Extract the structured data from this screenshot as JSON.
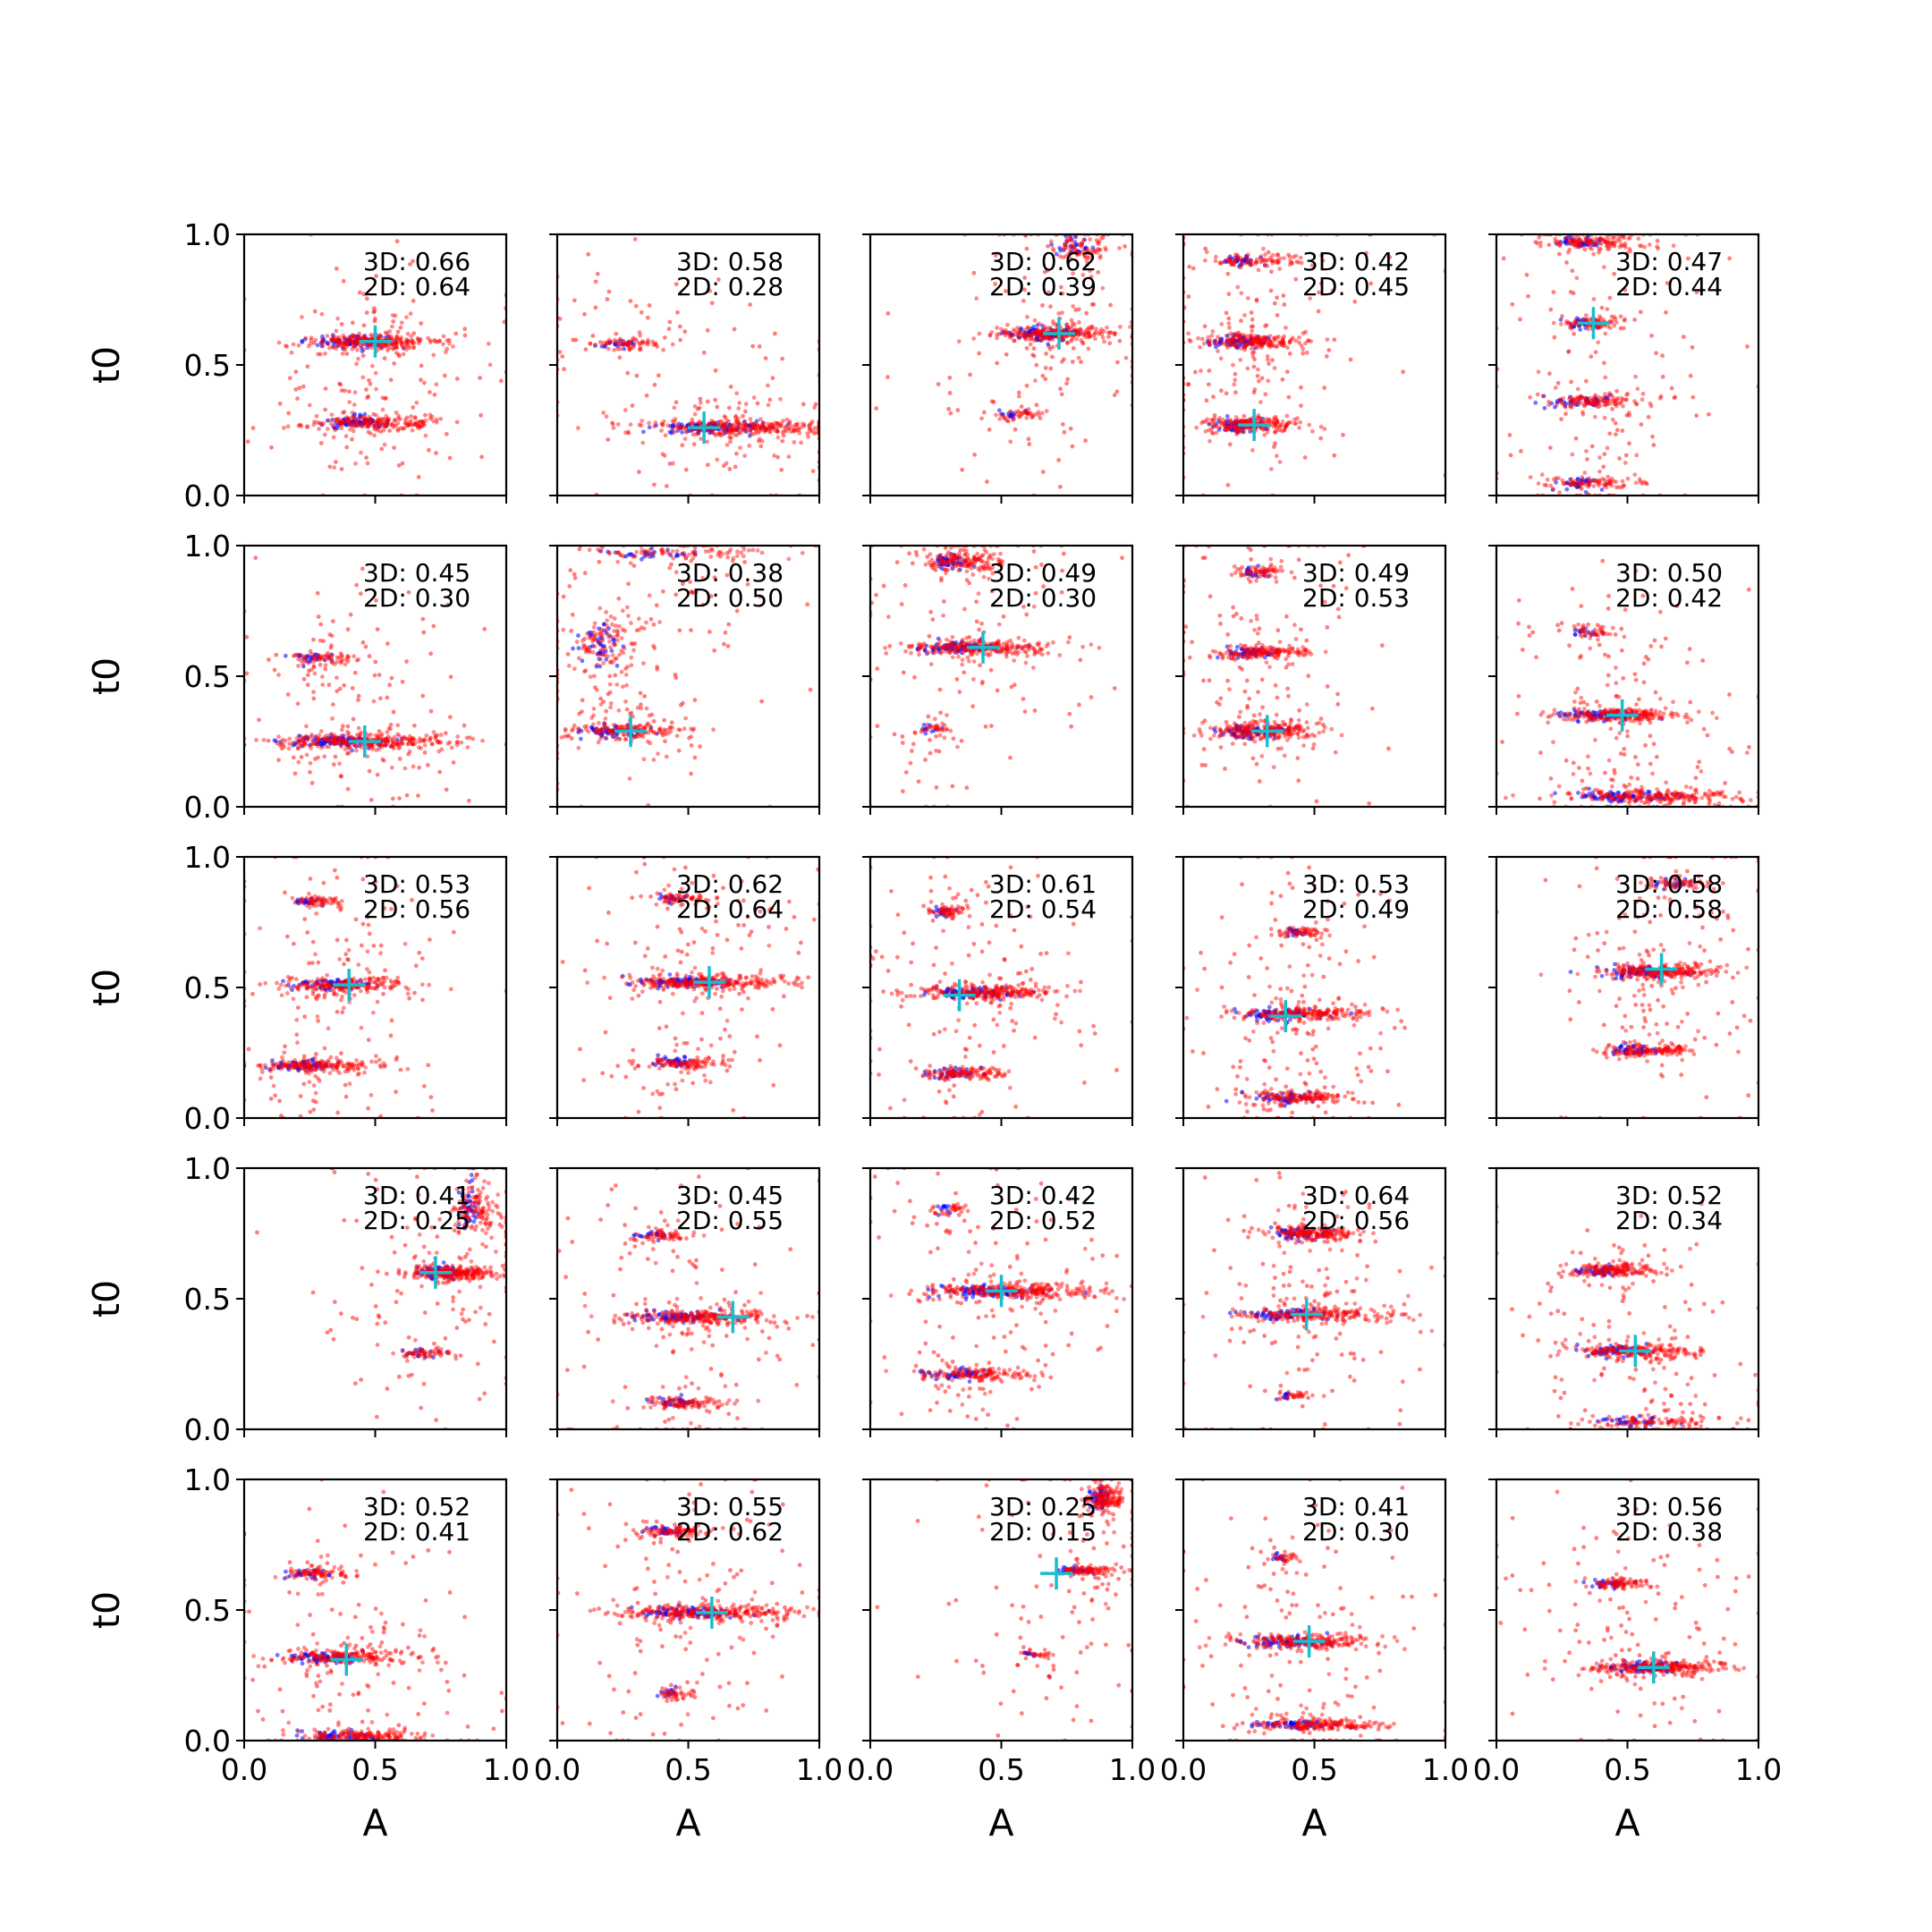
{
  "chart_data": {
    "type": "scatter",
    "title": "",
    "layout": {
      "rows": 5,
      "cols": 5
    },
    "xlabel": "A",
    "ylabel": "t0",
    "xlim": [
      0,
      1
    ],
    "ylim": [
      0,
      1
    ],
    "xticks": [
      "0.0",
      "0.5",
      "1.0"
    ],
    "yticks": [
      "0.0",
      "0.5",
      "1.0"
    ],
    "grid": false,
    "colors": {
      "samples_red": "#ff0000",
      "samples_blue": "#0000ff",
      "truth_marker": "#17becf"
    },
    "panels": [
      {
        "id": 1,
        "score_3d": "3D: 0.66",
        "score_2d": "2D: 0.64",
        "truth": [
          0.5,
          0.59
        ],
        "clusters": [
          {
            "x": 0.5,
            "y": 0.59,
            "w": 0.32,
            "h": 0.025,
            "n": 260
          },
          {
            "x": 0.5,
            "y": 0.28,
            "w": 0.3,
            "h": 0.025,
            "n": 200
          }
        ]
      },
      {
        "id": 2,
        "score_3d": "3D: 0.58",
        "score_2d": "2D: 0.28",
        "truth": [
          0.56,
          0.26
        ],
        "clusters": [
          {
            "x": 0.27,
            "y": 0.58,
            "w": 0.14,
            "h": 0.018,
            "n": 60
          },
          {
            "x": 0.7,
            "y": 0.26,
            "w": 0.45,
            "h": 0.025,
            "n": 320
          }
        ]
      },
      {
        "id": 3,
        "score_3d": "3D: 0.62",
        "score_2d": "2D: 0.39",
        "truth": [
          0.72,
          0.62
        ],
        "clusters": [
          {
            "x": 0.72,
            "y": 0.62,
            "w": 0.25,
            "h": 0.025,
            "n": 260
          },
          {
            "x": 0.57,
            "y": 0.31,
            "w": 0.12,
            "h": 0.018,
            "n": 40
          },
          {
            "x": 0.8,
            "y": 0.95,
            "w": 0.12,
            "h": 0.04,
            "n": 80
          }
        ]
      },
      {
        "id": 4,
        "score_3d": "3D: 0.42",
        "score_2d": "2D: 0.45",
        "truth": [
          0.27,
          0.27
        ],
        "clusters": [
          {
            "x": 0.27,
            "y": 0.27,
            "w": 0.22,
            "h": 0.025,
            "n": 200
          },
          {
            "x": 0.27,
            "y": 0.59,
            "w": 0.22,
            "h": 0.025,
            "n": 200
          },
          {
            "x": 0.27,
            "y": 0.9,
            "w": 0.18,
            "h": 0.022,
            "n": 90
          }
        ]
      },
      {
        "id": 5,
        "score_3d": "3D: 0.47",
        "score_2d": "2D: 0.44",
        "truth": [
          0.37,
          0.66
        ],
        "clusters": [
          {
            "x": 0.37,
            "y": 0.66,
            "w": 0.14,
            "h": 0.022,
            "n": 80
          },
          {
            "x": 0.37,
            "y": 0.36,
            "w": 0.24,
            "h": 0.022,
            "n": 120
          },
          {
            "x": 0.37,
            "y": 0.05,
            "w": 0.2,
            "h": 0.022,
            "n": 100
          },
          {
            "x": 0.37,
            "y": 0.97,
            "w": 0.22,
            "h": 0.022,
            "n": 120
          }
        ]
      },
      {
        "id": 6,
        "score_3d": "3D: 0.45",
        "score_2d": "2D: 0.30",
        "truth": [
          0.46,
          0.25
        ],
        "clusters": [
          {
            "x": 0.46,
            "y": 0.25,
            "w": 0.4,
            "h": 0.022,
            "n": 300
          },
          {
            "x": 0.3,
            "y": 0.57,
            "w": 0.15,
            "h": 0.018,
            "n": 70
          }
        ]
      },
      {
        "id": 7,
        "score_3d": "3D: 0.38",
        "score_2d": "2D: 0.50",
        "truth": [
          0.28,
          0.29
        ],
        "clusters": [
          {
            "x": 0.28,
            "y": 0.29,
            "w": 0.25,
            "h": 0.025,
            "n": 160
          },
          {
            "x": 0.2,
            "y": 0.63,
            "w": 0.15,
            "h": 0.1,
            "n": 120
          },
          {
            "x": 0.5,
            "y": 0.97,
            "w": 0.4,
            "h": 0.02,
            "n": 80
          }
        ]
      },
      {
        "id": 8,
        "score_3d": "3D: 0.49",
        "score_2d": "2D: 0.30",
        "truth": [
          0.43,
          0.61
        ],
        "clusters": [
          {
            "x": 0.43,
            "y": 0.61,
            "w": 0.32,
            "h": 0.022,
            "n": 240
          },
          {
            "x": 0.35,
            "y": 0.94,
            "w": 0.15,
            "h": 0.03,
            "n": 150
          },
          {
            "x": 0.25,
            "y": 0.3,
            "w": 0.08,
            "h": 0.018,
            "n": 30
          }
        ]
      },
      {
        "id": 9,
        "score_3d": "3D: 0.49",
        "score_2d": "2D: 0.53",
        "truth": [
          0.32,
          0.29
        ],
        "clusters": [
          {
            "x": 0.32,
            "y": 0.29,
            "w": 0.25,
            "h": 0.025,
            "n": 220
          },
          {
            "x": 0.3,
            "y": 0.59,
            "w": 0.2,
            "h": 0.022,
            "n": 160
          },
          {
            "x": 0.3,
            "y": 0.9,
            "w": 0.12,
            "h": 0.018,
            "n": 60
          }
        ]
      },
      {
        "id": 10,
        "score_3d": "3D: 0.50",
        "score_2d": "2D: 0.42",
        "truth": [
          0.48,
          0.35
        ],
        "clusters": [
          {
            "x": 0.48,
            "y": 0.35,
            "w": 0.3,
            "h": 0.022,
            "n": 220
          },
          {
            "x": 0.6,
            "y": 0.04,
            "w": 0.4,
            "h": 0.022,
            "n": 220
          },
          {
            "x": 0.37,
            "y": 0.67,
            "w": 0.1,
            "h": 0.018,
            "n": 40
          }
        ]
      },
      {
        "id": 11,
        "score_3d": "3D: 0.53",
        "score_2d": "2D: 0.56",
        "truth": [
          0.4,
          0.51
        ],
        "clusters": [
          {
            "x": 0.4,
            "y": 0.51,
            "w": 0.3,
            "h": 0.022,
            "n": 200
          },
          {
            "x": 0.28,
            "y": 0.2,
            "w": 0.25,
            "h": 0.022,
            "n": 180
          },
          {
            "x": 0.28,
            "y": 0.83,
            "w": 0.12,
            "h": 0.018,
            "n": 60
          }
        ]
      },
      {
        "id": 12,
        "score_3d": "3D: 0.62",
        "score_2d": "2D: 0.64",
        "truth": [
          0.58,
          0.52
        ],
        "clusters": [
          {
            "x": 0.58,
            "y": 0.52,
            "w": 0.35,
            "h": 0.022,
            "n": 260
          },
          {
            "x": 0.48,
            "y": 0.21,
            "w": 0.18,
            "h": 0.022,
            "n": 100
          },
          {
            "x": 0.48,
            "y": 0.84,
            "w": 0.14,
            "h": 0.018,
            "n": 60
          }
        ]
      },
      {
        "id": 13,
        "score_3d": "3D: 0.61",
        "score_2d": "2D: 0.54",
        "truth": [
          0.34,
          0.47
        ],
        "clusters": [
          {
            "x": 0.45,
            "y": 0.48,
            "w": 0.3,
            "h": 0.022,
            "n": 240
          },
          {
            "x": 0.35,
            "y": 0.17,
            "w": 0.2,
            "h": 0.022,
            "n": 120
          },
          {
            "x": 0.3,
            "y": 0.79,
            "w": 0.1,
            "h": 0.018,
            "n": 60
          }
        ]
      },
      {
        "id": 14,
        "score_3d": "3D: 0.53",
        "score_2d": "2D: 0.49",
        "truth": [
          0.39,
          0.39
        ],
        "clusters": [
          {
            "x": 0.45,
            "y": 0.4,
            "w": 0.3,
            "h": 0.022,
            "n": 220
          },
          {
            "x": 0.45,
            "y": 0.08,
            "w": 0.25,
            "h": 0.02,
            "n": 150
          },
          {
            "x": 0.45,
            "y": 0.71,
            "w": 0.12,
            "h": 0.018,
            "n": 60
          }
        ]
      },
      {
        "id": 15,
        "score_3d": "3D: 0.58",
        "score_2d": "2D: 0.58",
        "truth": [
          0.63,
          0.57
        ],
        "clusters": [
          {
            "x": 0.63,
            "y": 0.56,
            "w": 0.28,
            "h": 0.022,
            "n": 240
          },
          {
            "x": 0.58,
            "y": 0.26,
            "w": 0.2,
            "h": 0.02,
            "n": 140
          },
          {
            "x": 0.7,
            "y": 0.9,
            "w": 0.15,
            "h": 0.02,
            "n": 60
          }
        ]
      },
      {
        "id": 16,
        "score_3d": "3D: 0.41",
        "score_2d": "2D: 0.25",
        "truth": [
          0.73,
          0.6
        ],
        "clusters": [
          {
            "x": 0.8,
            "y": 0.6,
            "w": 0.2,
            "h": 0.022,
            "n": 240
          },
          {
            "x": 0.7,
            "y": 0.29,
            "w": 0.14,
            "h": 0.015,
            "n": 50
          },
          {
            "x": 0.88,
            "y": 0.85,
            "w": 0.1,
            "h": 0.08,
            "n": 120
          }
        ]
      },
      {
        "id": 17,
        "score_3d": "3D: 0.45",
        "score_2d": "2D: 0.55",
        "truth": [
          0.67,
          0.43
        ],
        "clusters": [
          {
            "x": 0.55,
            "y": 0.43,
            "w": 0.35,
            "h": 0.022,
            "n": 240
          },
          {
            "x": 0.4,
            "y": 0.74,
            "w": 0.14,
            "h": 0.018,
            "n": 60
          },
          {
            "x": 0.5,
            "y": 0.1,
            "w": 0.2,
            "h": 0.02,
            "n": 100
          }
        ]
      },
      {
        "id": 18,
        "score_3d": "3D: 0.42",
        "score_2d": "2D: 0.52",
        "truth": [
          0.5,
          0.53
        ],
        "clusters": [
          {
            "x": 0.55,
            "y": 0.53,
            "w": 0.38,
            "h": 0.022,
            "n": 280
          },
          {
            "x": 0.4,
            "y": 0.21,
            "w": 0.25,
            "h": 0.02,
            "n": 140
          },
          {
            "x": 0.3,
            "y": 0.84,
            "w": 0.1,
            "h": 0.018,
            "n": 30
          }
        ]
      },
      {
        "id": 19,
        "score_3d": "3D: 0.64",
        "score_2d": "2D: 0.56",
        "truth": [
          0.47,
          0.44
        ],
        "clusters": [
          {
            "x": 0.5,
            "y": 0.44,
            "w": 0.35,
            "h": 0.022,
            "n": 220
          },
          {
            "x": 0.5,
            "y": 0.75,
            "w": 0.22,
            "h": 0.02,
            "n": 180
          },
          {
            "x": 0.42,
            "y": 0.13,
            "w": 0.08,
            "h": 0.015,
            "n": 30
          }
        ]
      },
      {
        "id": 20,
        "score_3d": "3D: 0.52",
        "score_2d": "2D: 0.34",
        "truth": [
          0.53,
          0.3
        ],
        "clusters": [
          {
            "x": 0.53,
            "y": 0.3,
            "w": 0.3,
            "h": 0.022,
            "n": 200
          },
          {
            "x": 0.45,
            "y": 0.61,
            "w": 0.2,
            "h": 0.02,
            "n": 160
          },
          {
            "x": 0.6,
            "y": 0.03,
            "w": 0.3,
            "h": 0.02,
            "n": 100
          }
        ]
      },
      {
        "id": 21,
        "score_3d": "3D: 0.52",
        "score_2d": "2D: 0.41",
        "truth": [
          0.39,
          0.31
        ],
        "clusters": [
          {
            "x": 0.39,
            "y": 0.32,
            "w": 0.3,
            "h": 0.022,
            "n": 200
          },
          {
            "x": 0.28,
            "y": 0.64,
            "w": 0.14,
            "h": 0.018,
            "n": 80
          },
          {
            "x": 0.45,
            "y": 0.02,
            "w": 0.3,
            "h": 0.018,
            "n": 160
          }
        ]
      },
      {
        "id": 22,
        "score_3d": "3D: 0.55",
        "score_2d": "2D: 0.62",
        "truth": [
          0.59,
          0.49
        ],
        "clusters": [
          {
            "x": 0.59,
            "y": 0.49,
            "w": 0.38,
            "h": 0.022,
            "n": 280
          },
          {
            "x": 0.45,
            "y": 0.8,
            "w": 0.15,
            "h": 0.018,
            "n": 90
          },
          {
            "x": 0.45,
            "y": 0.18,
            "w": 0.08,
            "h": 0.018,
            "n": 40
          }
        ]
      },
      {
        "id": 23,
        "score_3d": "3D: 0.25",
        "score_2d": "2D: 0.15",
        "truth": [
          0.71,
          0.64
        ],
        "clusters": [
          {
            "x": 0.82,
            "y": 0.65,
            "w": 0.14,
            "h": 0.015,
            "n": 90
          },
          {
            "x": 0.63,
            "y": 0.33,
            "w": 0.08,
            "h": 0.012,
            "n": 25
          },
          {
            "x": 0.9,
            "y": 0.93,
            "w": 0.08,
            "h": 0.04,
            "n": 150
          }
        ]
      },
      {
        "id": 24,
        "score_3d": "3D: 0.41",
        "score_2d": "2D: 0.30",
        "truth": [
          0.48,
          0.38
        ],
        "clusters": [
          {
            "x": 0.48,
            "y": 0.38,
            "w": 0.3,
            "h": 0.022,
            "n": 220
          },
          {
            "x": 0.5,
            "y": 0.06,
            "w": 0.3,
            "h": 0.018,
            "n": 180
          },
          {
            "x": 0.38,
            "y": 0.7,
            "w": 0.07,
            "h": 0.015,
            "n": 30
          }
        ]
      },
      {
        "id": 25,
        "score_3d": "3D: 0.56",
        "score_2d": "2D: 0.38",
        "truth": [
          0.6,
          0.28
        ],
        "clusters": [
          {
            "x": 0.62,
            "y": 0.28,
            "w": 0.3,
            "h": 0.022,
            "n": 240
          },
          {
            "x": 0.47,
            "y": 0.6,
            "w": 0.14,
            "h": 0.018,
            "n": 80
          }
        ]
      }
    ]
  }
}
